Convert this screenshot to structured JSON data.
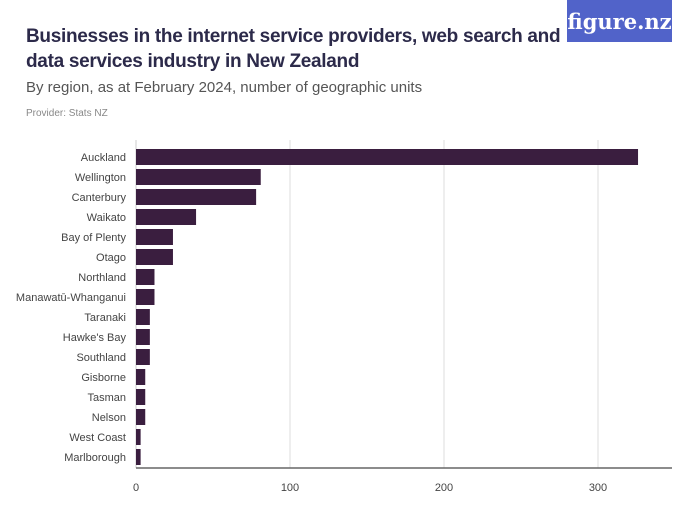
{
  "header": {
    "title": "Businesses in the internet service providers, web search and data services industry in New Zealand",
    "subtitle": "By region, as at February 2024, number of geographic units",
    "provider": "Provider: Stats NZ",
    "logo": "figure.nz"
  },
  "chart_data": {
    "type": "bar",
    "orientation": "horizontal",
    "title": "Businesses in the internet service providers, web search and data services industry in New Zealand",
    "categories": [
      "Auckland",
      "Wellington",
      "Canterbury",
      "Waikato",
      "Bay of Plenty",
      "Otago",
      "Northland",
      "Manawatū-Whanganui",
      "Taranaki",
      "Hawke's Bay",
      "Southland",
      "Gisborne",
      "Tasman",
      "Nelson",
      "West Coast",
      "Marlborough"
    ],
    "values": [
      326,
      81,
      78,
      39,
      24,
      24,
      12,
      12,
      9,
      9,
      9,
      6,
      6,
      6,
      3,
      3
    ],
    "xlim": [
      0,
      350
    ],
    "xticks": [
      0,
      100,
      200,
      300
    ],
    "grid": true,
    "color": "#3a1e3f",
    "xlabel": "",
    "ylabel": ""
  }
}
